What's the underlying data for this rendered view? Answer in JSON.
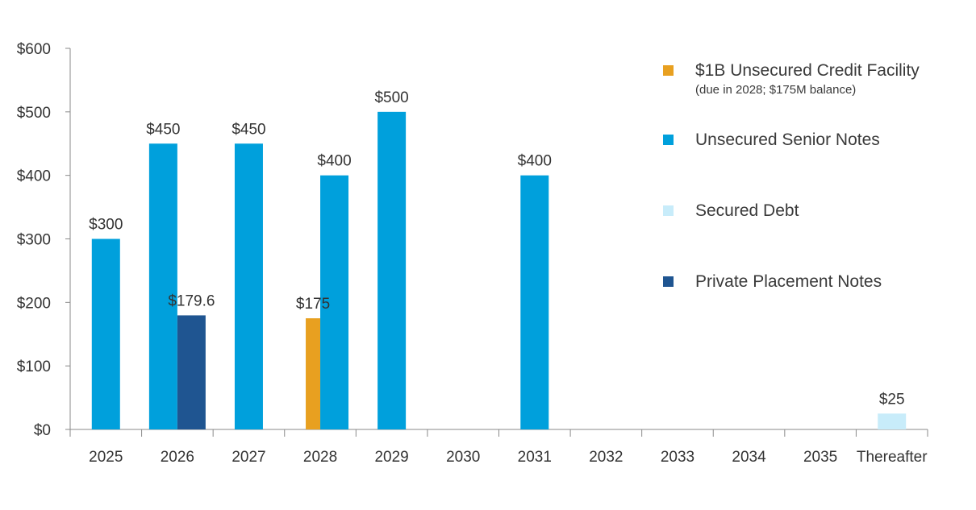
{
  "chart_data": {
    "type": "bar",
    "categories": [
      "2025",
      "2026",
      "2027",
      "2028",
      "2029",
      "2030",
      "2031",
      "2032",
      "2033",
      "2034",
      "2035",
      "Thereafter"
    ],
    "ylim": [
      0,
      600
    ],
    "yticks": [
      0,
      100,
      200,
      300,
      400,
      500,
      600
    ],
    "ytick_labels": [
      "$0",
      "$100",
      "$200",
      "$300",
      "$400",
      "$500",
      "$600"
    ],
    "legend_position": "right",
    "grid": false,
    "series": [
      {
        "name": "$1B Unsecured Credit Facility",
        "subtitle": "(due in 2028; $175M balance)",
        "color": "#E8A020",
        "values": [
          null,
          null,
          null,
          175,
          null,
          null,
          null,
          null,
          null,
          null,
          null,
          null
        ],
        "labels": [
          null,
          null,
          null,
          "$175",
          null,
          null,
          null,
          null,
          null,
          null,
          null,
          null
        ]
      },
      {
        "name": "Unsecured Senior Notes",
        "color": "#00A0DC",
        "values": [
          300,
          450,
          450,
          400,
          500,
          null,
          400,
          null,
          null,
          null,
          null,
          null
        ],
        "labels": [
          "$300",
          "$450",
          "$450",
          "$400",
          "$500",
          null,
          "$400",
          null,
          null,
          null,
          null,
          null
        ]
      },
      {
        "name": "Secured Debt",
        "color": "#C8ECFA",
        "values": [
          null,
          null,
          null,
          null,
          null,
          null,
          null,
          null,
          null,
          null,
          null,
          25
        ],
        "labels": [
          null,
          null,
          null,
          null,
          null,
          null,
          null,
          null,
          null,
          null,
          null,
          "$25"
        ]
      },
      {
        "name": "Private Placement Notes",
        "color": "#1F5591",
        "values": [
          null,
          179.6,
          null,
          null,
          null,
          null,
          null,
          null,
          null,
          null,
          null,
          null
        ],
        "labels": [
          null,
          "$179.6",
          null,
          null,
          null,
          null,
          null,
          null,
          null,
          null,
          null,
          null
        ]
      }
    ]
  }
}
